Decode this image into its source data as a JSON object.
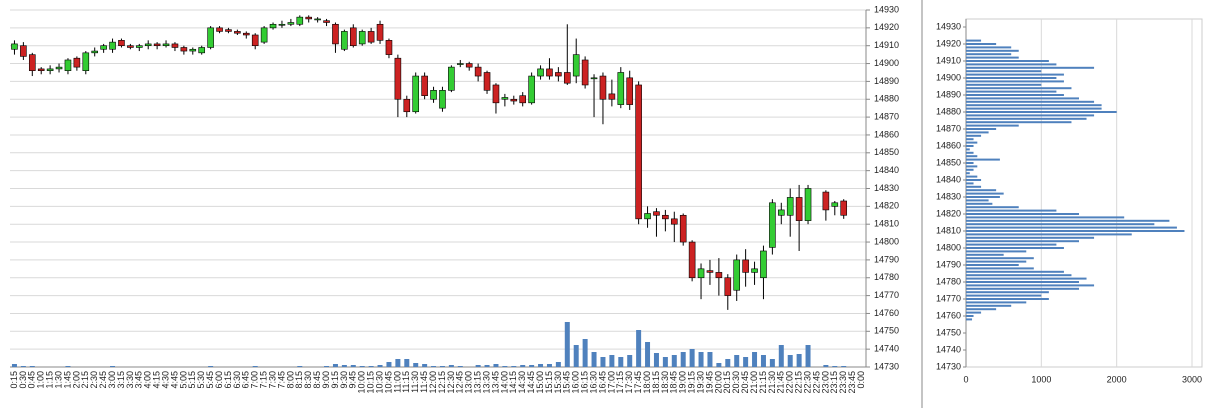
{
  "chart_data": [
    {
      "type": "candlestick",
      "categories": [
        "0:15",
        "0:30",
        "0:45",
        "1:00",
        "1:15",
        "1:30",
        "1:45",
        "2:00",
        "2:15",
        "2:30",
        "2:45",
        "3:00",
        "3:15",
        "3:30",
        "3:45",
        "4:00",
        "4:15",
        "4:30",
        "4:45",
        "5:00",
        "5:15",
        "5:30",
        "5:45",
        "6:00",
        "6:15",
        "6:30",
        "6:45",
        "7:00",
        "7:15",
        "7:30",
        "7:45",
        "8:00",
        "8:15",
        "8:30",
        "8:45",
        "9:00",
        "9:15",
        "9:30",
        "9:45",
        "10:00",
        "10:15",
        "10:30",
        "10:45",
        "11:00",
        "11:15",
        "11:30",
        "11:45",
        "12:00",
        "12:15",
        "12:30",
        "12:45",
        "13:00",
        "13:15",
        "13:30",
        "13:45",
        "14:00",
        "14:15",
        "14:30",
        "14:45",
        "15:00",
        "15:15",
        "15:30",
        "15:45",
        "16:00",
        "16:15",
        "16:30",
        "16:45",
        "17:00",
        "17:15",
        "17:30",
        "17:45",
        "18:00",
        "18:15",
        "18:30",
        "18:45",
        "19:00",
        "19:15",
        "19:30",
        "19:45",
        "20:00",
        "20:15",
        "20:30",
        "20:45",
        "21:00",
        "21:15",
        "21:30",
        "21:45",
        "22:00",
        "22:15",
        "22:30",
        "22:45",
        "23:00",
        "23:15",
        "23:30",
        "23:45",
        "0:00"
      ],
      "open": [
        14908,
        14910,
        14905,
        14897,
        14896,
        14897,
        14896,
        14903,
        14896,
        14906,
        14908,
        14908,
        14913,
        14910,
        14909,
        14910,
        14911,
        14910,
        14911,
        14909,
        14907,
        14906,
        14909,
        14920,
        14919,
        14918,
        14917,
        14916,
        14912,
        14920,
        14922,
        14922,
        14922,
        14926,
        14925,
        14924,
        14922,
        14908,
        14920,
        14911,
        14918,
        14922,
        14913,
        14903,
        14880,
        14873,
        14893,
        14880,
        14875,
        14885,
        14900,
        14900,
        14898,
        14895,
        14888,
        14880,
        14880,
        14882,
        14878,
        14893,
        14897,
        14895,
        14895,
        14893,
        14902,
        14892,
        14893,
        14883,
        14877,
        14892,
        14888,
        14813,
        14817,
        14815,
        14813,
        14815,
        14800,
        14780,
        14784,
        14783,
        14780,
        14773,
        14790,
        14783,
        14780,
        14797,
        14815,
        14815,
        14825,
        14812,
        null,
        14828,
        14820,
        14823,
        null,
        null
      ],
      "high": [
        14913,
        14912,
        14906,
        14898,
        14899,
        14900,
        14903,
        14904,
        14907,
        14909,
        14911,
        14914,
        14914,
        14911,
        14911,
        14913,
        14912,
        14913,
        14912,
        14910,
        14909,
        14910,
        14921,
        14921,
        14920,
        14919,
        14918,
        14917,
        14921,
        14923,
        14924,
        14925,
        14927,
        14927,
        14926,
        14925,
        14923,
        14919,
        14922,
        14919,
        14920,
        14924,
        14914,
        14905,
        14882,
        14895,
        14895,
        14887,
        14887,
        14899,
        14902,
        14901,
        14900,
        14896,
        14889,
        14883,
        14882,
        14884,
        14895,
        14899,
        14903,
        14898,
        14922,
        14914,
        14904,
        14894,
        14895,
        14891,
        14898,
        14896,
        14890,
        14820,
        14819,
        14818,
        14817,
        14816,
        14801,
        14788,
        14790,
        14791,
        14782,
        14793,
        14796,
        14789,
        14798,
        14824,
        14822,
        14830,
        14832,
        14832,
        null,
        14829,
        14823,
        14824,
        null,
        null
      ],
      "low": [
        14905,
        14902,
        14893,
        14894,
        14894,
        14895,
        14894,
        14896,
        14894,
        14904,
        14906,
        14906,
        14909,
        14908,
        14907,
        14908,
        14908,
        14909,
        14907,
        14905,
        14905,
        14905,
        14908,
        14917,
        14917,
        14916,
        14914,
        14908,
        14911,
        14919,
        14920,
        14921,
        14921,
        14923,
        14923,
        14921,
        14906,
        14907,
        14909,
        14910,
        14911,
        14911,
        14903,
        14870,
        14870,
        14872,
        14880,
        14878,
        14873,
        14884,
        14898,
        14896,
        14890,
        14883,
        14872,
        14876,
        14877,
        14876,
        14877,
        14891,
        14891,
        14890,
        14888,
        14889,
        14886,
        14870,
        14866,
        14876,
        14875,
        14874,
        14810,
        14808,
        14803,
        14806,
        14800,
        14798,
        14778,
        14768,
        14776,
        14770,
        14762,
        14767,
        14775,
        14776,
        14768,
        14793,
        14810,
        14803,
        14795,
        14810,
        null,
        14812,
        14815,
        14813,
        null,
        null
      ],
      "close": [
        14911,
        14904,
        14896,
        14896,
        14897,
        14898,
        14902,
        14898,
        14906,
        14907,
        14910,
        14912,
        14910,
        14909,
        14910,
        14911,
        14910,
        14911,
        14909,
        14907,
        14908,
        14909,
        14920,
        14918,
        14918,
        14917,
        14916,
        14910,
        14920,
        14922,
        14922,
        14923,
        14926,
        14925,
        14925,
        14923,
        14911,
        14918,
        14910,
        14918,
        14912,
        14913,
        14905,
        14880,
        14873,
        14893,
        14882,
        14885,
        14885,
        14898,
        14900,
        14898,
        14893,
        14885,
        14878,
        14881,
        14879,
        14878,
        14893,
        14897,
        14893,
        14893,
        14889,
        14905,
        14888,
        14892,
        14880,
        14880,
        14895,
        14877,
        14813,
        14816,
        14815,
        14813,
        14810,
        14800,
        14780,
        14785,
        14783,
        14780,
        14770,
        14790,
        14783,
        14785,
        14795,
        14822,
        14818,
        14825,
        14812,
        14830,
        null,
        14818,
        14822,
        14815,
        null,
        null
      ],
      "volume": [
        3,
        1,
        1,
        0,
        0,
        0,
        1,
        0,
        0,
        0,
        0,
        1,
        0,
        0,
        0,
        0,
        0,
        0,
        0,
        0,
        0,
        0,
        1,
        0,
        0,
        0,
        0,
        1,
        0,
        0,
        0,
        0,
        1,
        0,
        0,
        1,
        3,
        2,
        2,
        1,
        1,
        2,
        5,
        8,
        8,
        4,
        3,
        1,
        1,
        2,
        1,
        0,
        2,
        2,
        3,
        1,
        1,
        2,
        2,
        3,
        3,
        5,
        45,
        22,
        28,
        15,
        10,
        12,
        10,
        12,
        37,
        25,
        14,
        10,
        12,
        15,
        18,
        15,
        15,
        4,
        8,
        12,
        10,
        15,
        12,
        8,
        22,
        12,
        13,
        22,
        0,
        2,
        1,
        1,
        0,
        0
      ],
      "up_color": "#33cc33",
      "down_color": "#cc2222",
      "volume_color": "#4f81bd",
      "ylim": [
        14730,
        14930
      ],
      "yticks": [
        14730,
        14740,
        14750,
        14760,
        14770,
        14780,
        14790,
        14800,
        14810,
        14820,
        14830,
        14840,
        14850,
        14860,
        14870,
        14880,
        14890,
        14900,
        14910,
        14920,
        14930
      ],
      "grid": true
    },
    {
      "type": "hbar",
      "y": [
        14922,
        14920,
        14918,
        14916,
        14914,
        14912,
        14910,
        14908,
        14906,
        14904,
        14902,
        14900,
        14898,
        14896,
        14894,
        14892,
        14890,
        14888,
        14886,
        14884,
        14882,
        14880,
        14878,
        14876,
        14874,
        14872,
        14870,
        14868,
        14866,
        14864,
        14862,
        14860,
        14858,
        14856,
        14854,
        14852,
        14850,
        14848,
        14846,
        14844,
        14842,
        14840,
        14838,
        14836,
        14834,
        14832,
        14830,
        14828,
        14826,
        14824,
        14822,
        14820,
        14818,
        14816,
        14814,
        14812,
        14810,
        14808,
        14806,
        14804,
        14802,
        14800,
        14798,
        14796,
        14794,
        14792,
        14790,
        14788,
        14786,
        14784,
        14782,
        14780,
        14778,
        14776,
        14774,
        14772,
        14770,
        14768,
        14766,
        14764,
        14762,
        14760,
        14758
      ],
      "values": [
        200,
        400,
        600,
        700,
        600,
        700,
        1100,
        1200,
        1700,
        1000,
        1300,
        1200,
        1300,
        1000,
        1400,
        1200,
        1300,
        1500,
        1700,
        1800,
        1800,
        2000,
        1700,
        1600,
        1400,
        700,
        400,
        300,
        200,
        100,
        150,
        100,
        50,
        100,
        150,
        450,
        100,
        150,
        100,
        50,
        150,
        200,
        100,
        200,
        400,
        500,
        450,
        300,
        350,
        700,
        1200,
        1500,
        2100,
        2700,
        2500,
        2800,
        2900,
        2200,
        1700,
        1500,
        1200,
        1300,
        800,
        500,
        900,
        800,
        700,
        900,
        1300,
        1400,
        1600,
        1500,
        1700,
        1500,
        1100,
        1000,
        1100,
        800,
        600,
        400,
        200,
        100,
        80
      ],
      "color": "#4f81bd",
      "xlim": [
        0,
        3000
      ],
      "xticks": [
        0,
        1000,
        2000,
        3000
      ],
      "ylim": [
        14730,
        14930
      ],
      "yticks": [
        14730,
        14740,
        14750,
        14760,
        14770,
        14780,
        14790,
        14800,
        14810,
        14820,
        14830,
        14840,
        14850,
        14860,
        14870,
        14880,
        14890,
        14900,
        14910,
        14920,
        14930
      ],
      "grid": true
    }
  ]
}
